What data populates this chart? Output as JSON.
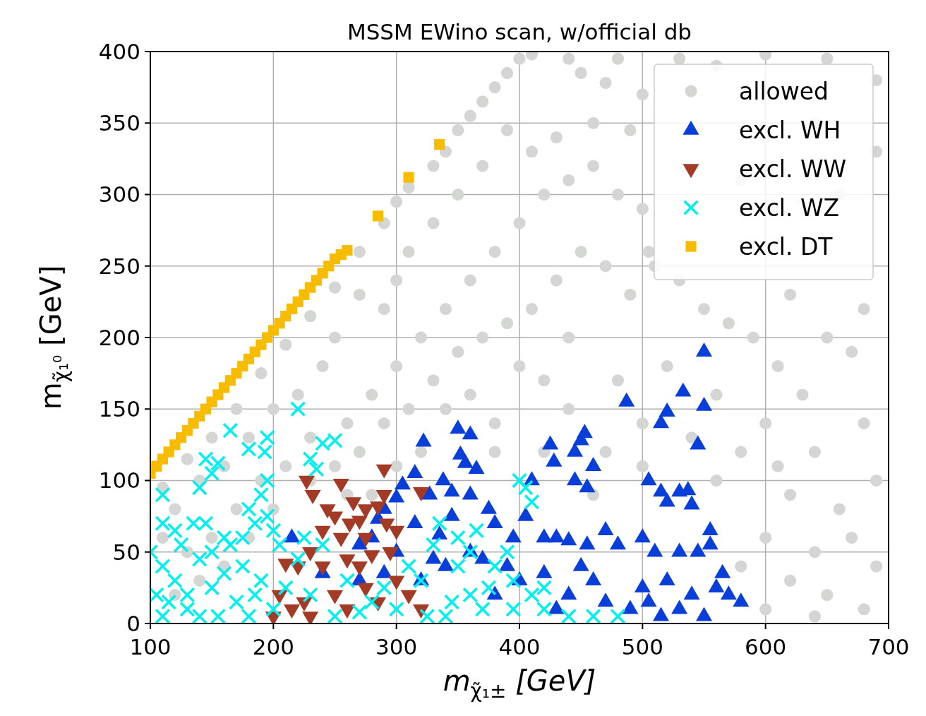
{
  "chart_data": {
    "type": "scatter",
    "title": "MSSM EWino scan, w/official db",
    "xlabel": "m$_{χ̃₁±}$ [GeV]",
    "ylabel": "m$_{χ̃₁⁰}$ [GeV]",
    "xlim": [
      100,
      700
    ],
    "ylim": [
      0,
      400
    ],
    "xticks": [
      100,
      200,
      300,
      400,
      500,
      600,
      700
    ],
    "yticks": [
      0,
      50,
      100,
      150,
      200,
      250,
      300,
      350,
      400
    ],
    "grid": true,
    "legend": "top right",
    "series": [
      {
        "name": "allowed",
        "color": "#d3d6d3",
        "marker": "circle",
        "x": [
          110,
          130,
          150,
          170,
          190,
          210,
          230,
          250,
          270,
          290,
          300,
          310,
          330,
          340,
          350,
          360,
          370,
          380,
          390,
          400,
          410,
          440,
          450,
          470,
          480,
          500,
          530,
          560,
          600,
          650,
          690,
          690,
          660,
          640,
          600,
          580,
          490,
          460,
          430,
          410,
          390,
          370,
          350,
          330,
          310,
          300,
          290,
          270,
          250,
          240,
          220,
          200,
          180,
          160,
          140,
          120,
          110,
          130,
          150,
          170,
          190,
          210,
          230,
          260,
          280,
          300,
          320,
          340,
          360,
          380,
          400,
          420,
          440,
          460,
          480,
          500,
          505,
          620,
          680,
          670,
          650,
          630,
          610,
          590,
          570,
          550,
          530,
          510,
          490,
          470,
          450,
          430,
          410,
          390,
          370,
          350,
          330,
          310,
          290,
          270,
          250,
          230,
          200,
          180,
          160,
          140,
          120,
          260,
          320,
          360,
          400,
          440,
          480,
          520,
          560,
          600,
          640,
          680,
          690,
          660,
          620,
          600,
          580,
          620,
          650,
          690,
          670,
          640,
          610,
          580,
          560,
          540,
          500,
          470,
          440,
          420,
          380,
          340,
          300,
          280,
          500,
          460,
          420,
          380,
          600,
          680,
          640
        ],
        "values": [
          95,
          115,
          130,
          150,
          175,
          195,
          215,
          235,
          260,
          280,
          295,
          305,
          320,
          330,
          345,
          355,
          365,
          375,
          385,
          395,
          398,
          395,
          385,
          378,
          395,
          370,
          395,
          390,
          398,
          395,
          380,
          330,
          300,
          350,
          340,
          310,
          345,
          350,
          340,
          330,
          345,
          320,
          300,
          280,
          260,
          240,
          220,
          230,
          200,
          180,
          160,
          150,
          130,
          110,
          100,
          80,
          60,
          50,
          60,
          80,
          100,
          110,
          130,
          140,
          160,
          180,
          200,
          220,
          240,
          260,
          280,
          300,
          310,
          320,
          300,
          290,
          260,
          230,
          220,
          190,
          200,
          160,
          180,
          200,
          210,
          220,
          240,
          250,
          230,
          250,
          260,
          240,
          220,
          210,
          200,
          190,
          170,
          150,
          140,
          120,
          110,
          100,
          80,
          60,
          40,
          30,
          20,
          90,
          120,
          160,
          180,
          200,
          170,
          180,
          160,
          140,
          120,
          140,
          100,
          80,
          90,
          60,
          40,
          30,
          20,
          40,
          60,
          50,
          110,
          120,
          100,
          130,
          140,
          120,
          150,
          170,
          140,
          150,
          110,
          90,
          110,
          90,
          120,
          120,
          10,
          10,
          5
        ]
      },
      {
        "name": "excl. WH",
        "color": "#0a3ed8",
        "marker": "triangle",
        "x": [
          550,
          533,
          550,
          520,
          515,
          545,
          487,
          453,
          450,
          425,
          428,
          445,
          460,
          445,
          455,
          505,
          530,
          515,
          520,
          537,
          540,
          555,
          555,
          350,
          360,
          352,
          356,
          365,
          322,
          338,
          345,
          327,
          315,
          305,
          300,
          290,
          285,
          280,
          270,
          315,
          335,
          345,
          360,
          375,
          380,
          395,
          410,
          405,
          420,
          430,
          440,
          455,
          470,
          480,
          500,
          510,
          530,
          545,
          565,
          580,
          570,
          560,
          540,
          520,
          500,
          490,
          470,
          460,
          450,
          440,
          430,
          420,
          400,
          390,
          380,
          370,
          360,
          340,
          330,
          320,
          290,
          215,
          240,
          270,
          300,
          505,
          530,
          550,
          515
        ],
        "values": [
          190,
          162,
          152,
          148,
          140,
          125,
          155,
          133,
          128,
          125,
          113,
          120,
          110,
          100,
          95,
          100,
          92,
          92,
          85,
          93,
          83,
          65,
          55,
          136,
          132,
          118,
          112,
          108,
          127,
          100,
          92,
          90,
          105,
          97,
          88,
          80,
          73,
          60,
          55,
          70,
          62,
          75,
          90,
          80,
          70,
          60,
          100,
          75,
          60,
          60,
          58,
          55,
          65,
          55,
          60,
          50,
          50,
          50,
          35,
          15,
          20,
          25,
          20,
          30,
          25,
          10,
          15,
          30,
          40,
          20,
          10,
          35,
          30,
          40,
          20,
          45,
          50,
          40,
          45,
          30,
          35,
          60,
          35,
          30,
          50,
          15,
          10,
          5,
          5
        ]
      },
      {
        "name": "excl. WW",
        "color": "#a23a26",
        "marker": "triangle-down",
        "x": [
          290,
          255,
          227,
          232,
          244,
          250,
          262,
          270,
          275,
          285,
          290,
          265,
          240,
          255,
          275,
          292,
          300,
          320,
          230,
          220,
          210,
          240,
          260,
          270,
          280,
          205,
          215,
          225,
          200,
          230,
          250,
          260,
          275,
          285,
          300,
          310,
          320,
          295
        ],
        "values": [
          108,
          98,
          100,
          90,
          80,
          75,
          70,
          72,
          80,
          82,
          90,
          85,
          65,
          60,
          60,
          70,
          65,
          92,
          50,
          40,
          42,
          40,
          45,
          40,
          48,
          20,
          10,
          15,
          5,
          5,
          20,
          10,
          25,
          15,
          30,
          20,
          10,
          50
        ]
      },
      {
        "name": "excl. WZ",
        "color": "#00f0f0",
        "marker": "cross",
        "x": [
          220,
          165,
          110,
          145,
          150,
          155,
          140,
          180,
          195,
          193,
          230,
          235,
          240,
          250,
          195,
          190,
          180,
          185,
          175,
          195,
          200,
          110,
          120,
          125,
          135,
          145,
          160,
          100,
          110,
          140,
          150,
          165,
          205,
          220,
          240,
          210,
          120,
          105,
          130,
          150,
          170,
          190,
          200,
          230,
          250,
          260,
          280,
          300,
          310,
          320,
          330,
          335,
          350,
          360,
          370,
          380,
          390,
          400,
          405,
          410,
          395,
          410,
          420,
          440,
          460,
          480,
          395,
          345,
          325,
          180,
          140,
          110,
          115,
          160,
          175,
          130,
          155,
          185,
          225,
          270,
          290,
          340,
          375,
          420,
          350,
          365,
          360
        ],
        "values": [
          150,
          135,
          90,
          115,
          105,
          112,
          95,
          122,
          130,
          120,
          115,
          108,
          126,
          128,
          100,
          90,
          80,
          70,
          60,
          75,
          65,
          70,
          65,
          55,
          70,
          70,
          60,
          50,
          40,
          45,
          50,
          55,
          55,
          45,
          55,
          25,
          30,
          20,
          10,
          25,
          15,
          30,
          10,
          20,
          5,
          30,
          15,
          10,
          40,
          30,
          55,
          70,
          40,
          20,
          10,
          40,
          50,
          100,
          95,
          85,
          30,
          20,
          10,
          5,
          5,
          5,
          10,
          15,
          5,
          5,
          5,
          5,
          15,
          35,
          40,
          20,
          5,
          20,
          60,
          8,
          25,
          5,
          25,
          25,
          60,
          65,
          50
        ]
      },
      {
        "name": "excl. DT",
        "color": "#f7bc00",
        "marker": "square",
        "x": [
          100,
          105,
          110,
          115,
          120,
          125,
          130,
          135,
          140,
          145,
          150,
          155,
          160,
          165,
          170,
          175,
          180,
          185,
          190,
          195,
          200,
          205,
          210,
          215,
          220,
          225,
          230,
          235,
          240,
          245,
          250,
          255,
          260,
          285,
          310,
          335
        ],
        "values": [
          105,
          110,
          115,
          120,
          125,
          130,
          135,
          140,
          145,
          150,
          155,
          160,
          165,
          170,
          175,
          180,
          185,
          190,
          195,
          200,
          205,
          210,
          215,
          220,
          225,
          230,
          235,
          240,
          245,
          250,
          255,
          258,
          261,
          285,
          312,
          335
        ]
      }
    ]
  }
}
